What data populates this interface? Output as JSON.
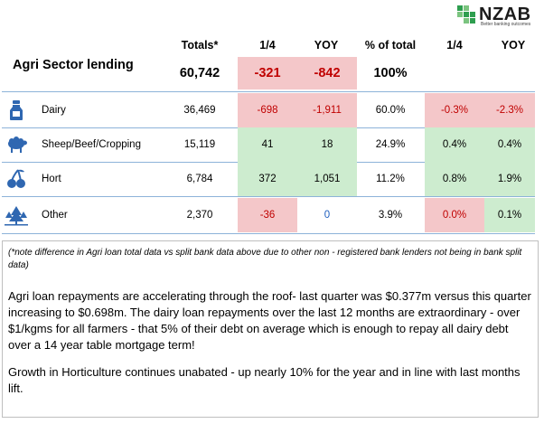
{
  "logo": {
    "name": "NZAB",
    "tagline": "Better banking outcomes",
    "color": "#2e9e4f"
  },
  "headers": {
    "totals": "Totals*",
    "q": "1/4",
    "yoy": "YOY",
    "pct": "% of total",
    "q2": "1/4",
    "yoy2": "YOY"
  },
  "total_row": {
    "title": "Agri Sector lending",
    "totals": "60,742",
    "q": "-321",
    "yoy": "-842",
    "pct": "100%"
  },
  "rows": [
    {
      "icon": "milk-bottle-icon",
      "label": "Dairy",
      "totals": "36,469",
      "q": "-698",
      "yoy": "-1,911",
      "pct": "60.0%",
      "q2": "-0.3%",
      "yoy2": "-2.3%"
    },
    {
      "icon": "sheep-icon",
      "label": "Sheep/Beef/Cropping",
      "totals": "15,119",
      "q": "41",
      "yoy": "18",
      "pct": "24.9%",
      "q2": "0.4%",
      "yoy2": "0.4%"
    },
    {
      "icon": "cherries-icon",
      "label": "Hort",
      "totals": "6,784",
      "q": "372",
      "yoy": "1,051",
      "pct": "11.2%",
      "q2": "0.8%",
      "yoy2": "1.9%"
    },
    {
      "icon": "trees-icon",
      "label": "Other",
      "totals": "2,370",
      "q": "-36",
      "yoy": "0",
      "pct": "3.9%",
      "q2": "0.0%",
      "yoy2": "0.1%"
    }
  ],
  "colors": {
    "negative_fill": "#f4c7c9",
    "positive_fill": "#cdeccf",
    "negative_text": "#c00000",
    "zero_text": "#1f5fbf",
    "icon": "#2f67b1"
  },
  "note": "(*note difference in Agri loan total data vs split bank data above due to other non - registered bank lenders not being in bank split data)",
  "para1": "Agri loan repayments are accelerating through the roof- last quarter was $0.377m versus this quarter increasing to $0.698m.  The dairy loan repayments over the last 12 months are extraordinary - over $1/kgms for all farmers - that 5% of their debt on average which is enough to repay all dairy debt over a 14 year table mortgage term!",
  "para2": "Growth in Horticulture continues unabated - up nearly 10% for the year and in line with last months lift."
}
